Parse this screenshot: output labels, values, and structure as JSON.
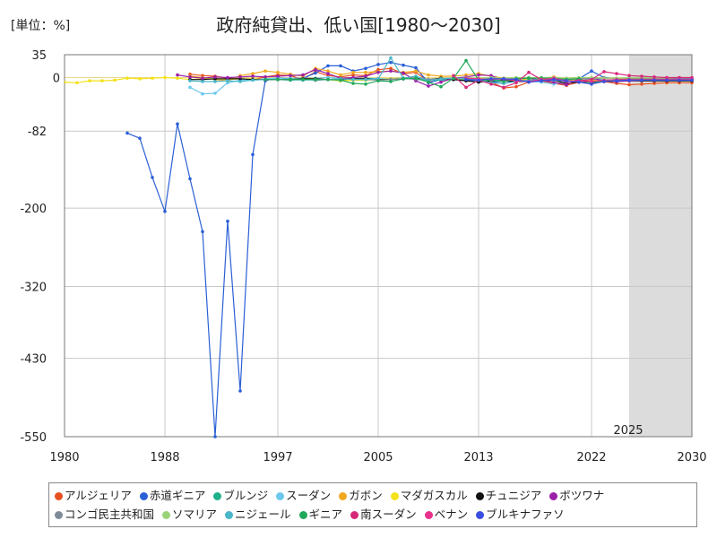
{
  "chart_data": {
    "type": "line",
    "title": "政府純貸出、低い国[1980～2030]",
    "unit_label": "[単位：%]",
    "xlim": [
      1980,
      2030
    ],
    "ylim": [
      -550,
      35
    ],
    "x_ticks": [
      1980,
      1988,
      1997,
      2005,
      2013,
      2022,
      2030
    ],
    "y_ticks": [
      35,
      0,
      -82,
      -200,
      -320,
      -430,
      -550
    ],
    "forecast_start": 2025,
    "forecast_label": "2025",
    "legend_position": "bottom",
    "series": [
      {
        "name": "アルジェリア",
        "color": "#e8501e",
        "x": [
          1990,
          1991,
          1992,
          1993,
          1994,
          1995,
          1996,
          1997,
          1998,
          1999,
          2000,
          2001,
          2002,
          2003,
          2004,
          2005,
          2006,
          2007,
          2008,
          2009,
          2010,
          2011,
          2012,
          2013,
          2014,
          2015,
          2016,
          2017,
          2018,
          2019,
          2020,
          2021,
          2022,
          2023,
          2024,
          2025,
          2026,
          2027,
          2028,
          2029,
          2030
        ],
        "values": [
          5,
          3,
          2,
          -1,
          -2,
          -3,
          1,
          4,
          3,
          -3,
          9,
          3,
          1,
          4,
          3,
          12,
          14,
          6,
          8,
          -6,
          -1,
          -1,
          -4,
          -1,
          -7,
          -16,
          -14,
          -7,
          -5,
          -9,
          -12,
          -7,
          -3,
          -6,
          -9,
          -11,
          -10,
          -9,
          -8,
          -8,
          -8
        ]
      },
      {
        "name": "赤道ギニア",
        "color": "#2a5fd6",
        "x": [
          1985,
          1986,
          1987,
          1988,
          1989,
          1990,
          1991,
          1992,
          1993,
          1994,
          1995,
          1996,
          1997,
          1998,
          1999,
          2000,
          2001,
          2002,
          2003,
          2004,
          2005,
          2006,
          2007,
          2008,
          2009,
          2010,
          2011,
          2012,
          2013,
          2014,
          2015,
          2016,
          2017,
          2018,
          2019,
          2020,
          2021,
          2022,
          2023,
          2024,
          2025,
          2026,
          2027,
          2028,
          2029,
          2030
        ],
        "values": [
          -85,
          -93,
          -153,
          -205,
          -71,
          -155,
          -236,
          -550,
          -220,
          -480,
          -118,
          -5,
          0,
          -3,
          -1,
          7,
          18,
          18,
          10,
          14,
          20,
          23,
          19,
          15,
          -8,
          -3,
          -3,
          -5,
          -4,
          -6,
          -9,
          -5,
          -3,
          0,
          -1,
          -2,
          -2,
          10,
          0,
          -2,
          -3,
          -3,
          -2,
          -2,
          -1,
          -1
        ]
      },
      {
        "name": "ブルンジ",
        "color": "#1fb08a",
        "x": [
          1997,
          1998,
          1999,
          2000,
          2001,
          2002,
          2003,
          2004,
          2005,
          2006,
          2007,
          2008,
          2009,
          2010,
          2011,
          2012,
          2013,
          2014,
          2015,
          2016,
          2017,
          2018,
          2019,
          2020,
          2021,
          2022,
          2023,
          2024,
          2025,
          2026,
          2027,
          2028,
          2029,
          2030
        ],
        "values": [
          -3,
          -4,
          -3,
          -4,
          -3,
          -5,
          -2,
          -1,
          -2,
          -2,
          -1,
          -3,
          -4,
          -4,
          -3,
          -3,
          -2,
          -3,
          -4,
          -5,
          -5,
          -4,
          -4,
          -5,
          -6,
          -5,
          -5,
          -4,
          -4,
          -3,
          -3,
          -3,
          -3,
          -3
        ]
      },
      {
        "name": "スーダン",
        "color": "#6cc8ee",
        "x": [
          1990,
          1991,
          1992,
          1993,
          1994,
          1995,
          1996,
          1997,
          1998,
          1999,
          2000,
          2001,
          2002,
          2003,
          2004,
          2005,
          2006,
          2007,
          2008,
          2009,
          2010,
          2011,
          2012,
          2013,
          2014,
          2015,
          2016,
          2017,
          2018,
          2019,
          2020,
          2021,
          2022,
          2023,
          2024,
          2025,
          2026,
          2027,
          2028,
          2029,
          2030
        ],
        "values": [
          -15,
          -25,
          -24,
          -8,
          -4,
          -3,
          -2,
          -1,
          -1,
          -1,
          -1,
          0,
          -1,
          -1,
          -2,
          -2,
          -2,
          -1,
          2,
          -4,
          -1,
          -1,
          -2,
          -3,
          -3,
          -3,
          -4,
          -5,
          -7,
          -10,
          -6,
          -4,
          -2,
          -3,
          -4,
          -4,
          -4,
          -4,
          -4,
          -4,
          -4
        ]
      },
      {
        "name": "ガボン",
        "color": "#f0a91e",
        "x": [
          1990,
          1991,
          1992,
          1993,
          1994,
          1995,
          1996,
          1997,
          1998,
          1999,
          2000,
          2001,
          2002,
          2003,
          2004,
          2005,
          2006,
          2007,
          2008,
          2009,
          2010,
          2011,
          2012,
          2013,
          2014,
          2015,
          2016,
          2017,
          2018,
          2019,
          2020,
          2021,
          2022,
          2023,
          2024,
          2025,
          2026,
          2027,
          2028,
          2029,
          2030
        ],
        "values": [
          2,
          0,
          -3,
          -5,
          3,
          6,
          10,
          8,
          5,
          2,
          14,
          10,
          4,
          8,
          8,
          9,
          10,
          8,
          10,
          4,
          2,
          2,
          4,
          6,
          2,
          -1,
          -5,
          -3,
          -1,
          1,
          -2,
          -2,
          0,
          -1,
          -1,
          -2,
          -2,
          -2,
          -2,
          -2,
          -2
        ]
      },
      {
        "name": "マダガスカル",
        "color": "#f4e21a",
        "x": [
          1980,
          1981,
          1982,
          1983,
          1984,
          1985,
          1986,
          1987,
          1988,
          1989,
          1990,
          1991,
          1992,
          1993,
          1994,
          1995,
          1996,
          1997,
          1998,
          1999,
          2000,
          2001,
          2002,
          2003,
          2004,
          2005,
          2006,
          2007,
          2008,
          2009,
          2010,
          2011,
          2012,
          2013,
          2014,
          2015,
          2016,
          2017,
          2018,
          2019,
          2020,
          2021,
          2022,
          2023,
          2024,
          2025,
          2026,
          2027,
          2028,
          2029,
          2030
        ],
        "values": [
          -7,
          -8,
          -5,
          -5,
          -4,
          -1,
          -2,
          -1,
          0,
          -1,
          -3,
          -2,
          -2,
          -3,
          -2,
          -2,
          -3,
          -3,
          -3,
          -2,
          -2,
          -3,
          -5,
          -4,
          -4,
          -3,
          -2,
          -2,
          -2,
          -3,
          -1,
          -2,
          -2,
          -3,
          -2,
          -3,
          -2,
          -2,
          -2,
          -1,
          -4,
          -3,
          -5,
          -4,
          -4,
          -3,
          -3,
          -3,
          -3,
          -3,
          -3
        ]
      },
      {
        "name": "チュニジア",
        "color": "#111111",
        "x": [
          1990,
          1991,
          1992,
          1993,
          1994,
          1995,
          1996,
          1997,
          1998,
          1999,
          2000,
          2001,
          2002,
          2003,
          2004,
          2005,
          2006,
          2007,
          2008,
          2009,
          2010,
          2011,
          2012,
          2013,
          2014,
          2015,
          2016,
          2017,
          2018,
          2019,
          2020,
          2021,
          2022,
          2023,
          2024,
          2025,
          2026,
          2027,
          2028,
          2029,
          2030
        ],
        "values": [
          -3,
          -3,
          -2,
          -2,
          -2,
          -3,
          -3,
          -3,
          -3,
          -2,
          -2,
          -3,
          -3,
          -2,
          -2,
          -3,
          -3,
          -2,
          -1,
          -3,
          -1,
          -3,
          -5,
          -7,
          -5,
          -5,
          -6,
          -6,
          -5,
          -4,
          -9,
          -7,
          -7,
          -6,
          -6,
          -5,
          -5,
          -5,
          -5,
          -5,
          -5
        ]
      },
      {
        "name": "ボツワナ",
        "color": "#9b1fa8",
        "x": [
          1989,
          1990,
          1991,
          1992,
          1993,
          1994,
          1995,
          1996,
          1997,
          1998,
          1999,
          2000,
          2001,
          2002,
          2003,
          2004,
          2005,
          2006,
          2007,
          2008,
          2009,
          2010,
          2011,
          2012,
          2013,
          2014,
          2015,
          2016,
          2017,
          2018,
          2019,
          2020,
          2021,
          2022,
          2023,
          2024,
          2025,
          2026,
          2027,
          2028,
          2029,
          2030
        ],
        "values": [
          4,
          1,
          -1,
          1,
          0,
          1,
          2,
          1,
          2,
          3,
          4,
          12,
          6,
          -1,
          0,
          2,
          8,
          10,
          7,
          -5,
          -13,
          -7,
          -1,
          1,
          4,
          3,
          -4,
          -1,
          -1,
          -4,
          -7,
          -11,
          -2,
          -1,
          -5,
          -6,
          -5,
          -4,
          -3,
          -3,
          -2,
          -2
        ]
      },
      {
        "name": "コンゴ民主共和国",
        "color": "#7f8b99",
        "x": [
          2000,
          2001,
          2002,
          2003,
          2004,
          2005,
          2006,
          2007,
          2008,
          2009,
          2010,
          2011,
          2012,
          2013,
          2014,
          2015,
          2016,
          2017,
          2018,
          2019,
          2020,
          2021,
          2022,
          2023,
          2024,
          2025,
          2026,
          2027,
          2028,
          2029,
          2030
        ],
        "values": [
          -4,
          -3,
          -2,
          -3,
          -3,
          -4,
          -3,
          -2,
          -2,
          -3,
          -2,
          -1,
          -2,
          -2,
          -1,
          -1,
          -1,
          0,
          -1,
          -1,
          -2,
          -1,
          -2,
          -1,
          -1,
          -1,
          -1,
          -1,
          -1,
          -1,
          -1
        ]
      },
      {
        "name": "ソマリア",
        "color": "#9ad37a",
        "x": [
          2012,
          2013,
          2014,
          2015,
          2016,
          2017,
          2018,
          2019,
          2020,
          2021,
          2022,
          2023,
          2024,
          2025,
          2026,
          2027,
          2028,
          2029,
          2030
        ],
        "values": [
          0,
          -1,
          0,
          -1,
          0,
          0,
          0,
          0,
          -1,
          0,
          0,
          -1,
          -1,
          0,
          0,
          0,
          0,
          0,
          0
        ]
      },
      {
        "name": "ニジェール",
        "color": "#4bb6c9",
        "x": [
          1990,
          1991,
          1992,
          1993,
          1994,
          1995,
          1996,
          1997,
          1998,
          1999,
          2000,
          2001,
          2002,
          2003,
          2004,
          2005,
          2006,
          2007,
          2008,
          2009,
          2010,
          2011,
          2012,
          2013,
          2014,
          2015,
          2016,
          2017,
          2018,
          2019,
          2020,
          2021,
          2022,
          2023,
          2024,
          2025,
          2026,
          2027,
          2028,
          2029,
          2030
        ],
        "values": [
          -5,
          -6,
          -6,
          -5,
          -6,
          -4,
          -3,
          -3,
          -3,
          -4,
          -3,
          -3,
          -2,
          -3,
          -3,
          -2,
          30,
          -1,
          2,
          -5,
          -2,
          -1,
          -1,
          -3,
          -8,
          -9,
          -6,
          -4,
          -3,
          -4,
          -5,
          -6,
          -6,
          -5,
          -4,
          -3,
          -3,
          -3,
          -3,
          -3,
          -3
        ]
      },
      {
        "name": "ギニア",
        "color": "#1fa85a",
        "x": [
          1996,
          1997,
          1998,
          1999,
          2000,
          2001,
          2002,
          2003,
          2004,
          2005,
          2006,
          2007,
          2008,
          2009,
          2010,
          2011,
          2012,
          2013,
          2014,
          2015,
          2016,
          2017,
          2018,
          2019,
          2020,
          2021,
          2022,
          2023,
          2024,
          2025,
          2026,
          2027,
          2028,
          2029,
          2030
        ],
        "values": [
          -3,
          -3,
          -3,
          -3,
          -3,
          -3,
          -4,
          -9,
          -10,
          -5,
          -6,
          -2,
          -1,
          -7,
          -14,
          -1,
          26,
          -4,
          -4,
          -6,
          -2,
          -1,
          -1,
          -1,
          -3,
          -2,
          -9,
          -5,
          -3,
          -3,
          -3,
          -3,
          -3,
          -3,
          -3
        ]
      },
      {
        "name": "南スーダン",
        "color": "#d6287a",
        "x": [
          2011,
          2012,
          2013,
          2014,
          2015,
          2016,
          2017,
          2018,
          2019,
          2020,
          2021,
          2022,
          2023,
          2024,
          2025,
          2026,
          2027,
          2028,
          2029,
          2030
        ],
        "values": [
          3,
          -15,
          -4,
          -10,
          -15,
          -8,
          8,
          -3,
          -2,
          -6,
          -5,
          -3,
          9,
          6,
          3,
          2,
          1,
          0,
          0,
          0
        ]
      },
      {
        "name": "ベナン",
        "color": "#e8328c",
        "x": [
          2012,
          2013,
          2014,
          2015,
          2016,
          2017,
          2018,
          2019,
          2020,
          2021,
          2022,
          2023,
          2024,
          2025,
          2026,
          2027,
          2028,
          2029,
          2030
        ],
        "values": [
          -1,
          -2,
          -3,
          -2,
          -5,
          -6,
          -3,
          -1,
          -5,
          -5,
          -6,
          -4,
          -3,
          -3,
          -3,
          -3,
          -3,
          -3,
          -3
        ]
      },
      {
        "name": "ブルキナファソ",
        "color": "#3a4fe0",
        "x": [
          2012,
          2013,
          2014,
          2015,
          2016,
          2017,
          2018,
          2019,
          2020,
          2021,
          2022,
          2023,
          2024,
          2025,
          2026,
          2027,
          2028,
          2029,
          2030
        ],
        "values": [
          -3,
          -4,
          -2,
          -2,
          -3,
          -7,
          -5,
          -3,
          -5,
          -7,
          -10,
          -6,
          -5,
          -4,
          -4,
          -4,
          -4,
          -4,
          -4
        ]
      }
    ]
  }
}
